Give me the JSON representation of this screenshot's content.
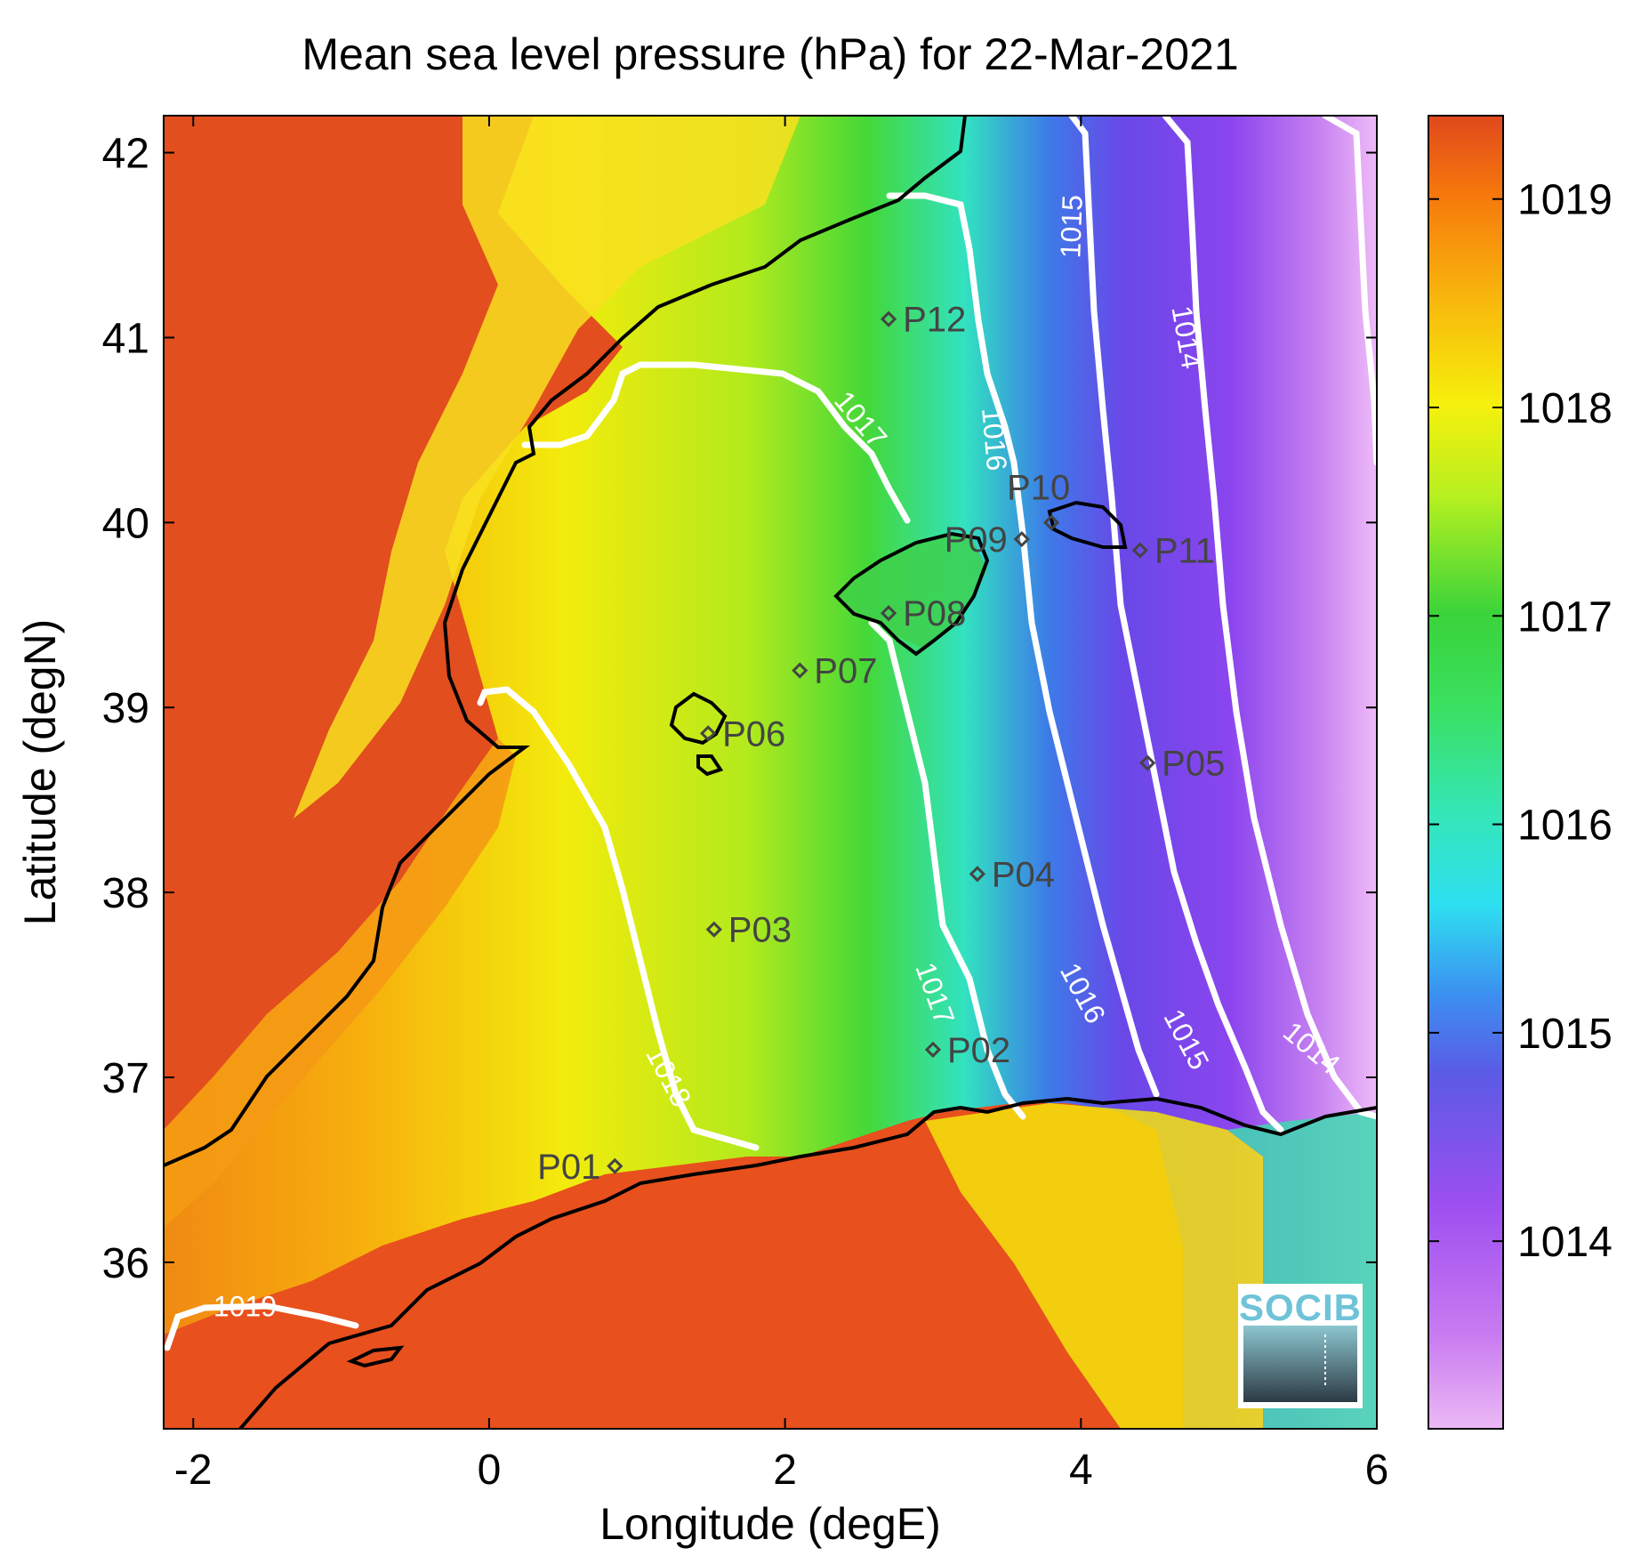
{
  "title": "Mean sea level pressure (hPa) for 22-Mar-2021",
  "x_axis": {
    "label": "Longitude (degE)",
    "range": [
      -2.2,
      6
    ],
    "ticks": [
      {
        "value": -2,
        "label": "-2"
      },
      {
        "value": 0,
        "label": "0"
      },
      {
        "value": 2,
        "label": "2"
      },
      {
        "value": 4,
        "label": "4"
      },
      {
        "value": 6,
        "label": "6"
      }
    ]
  },
  "y_axis": {
    "label": "Latitude (degN)",
    "range": [
      35.1,
      42.2
    ],
    "ticks": [
      {
        "value": 36,
        "label": "36"
      },
      {
        "value": 37,
        "label": "37"
      },
      {
        "value": 38,
        "label": "38"
      },
      {
        "value": 39,
        "label": "39"
      },
      {
        "value": 40,
        "label": "40"
      },
      {
        "value": 41,
        "label": "41"
      },
      {
        "value": 42,
        "label": "42"
      }
    ]
  },
  "colorbar": {
    "range": [
      1013.1,
      1019.4
    ],
    "ticks": [
      {
        "value": 1014,
        "label": "1014"
      },
      {
        "value": 1015,
        "label": "1015"
      },
      {
        "value": 1016,
        "label": "1016"
      },
      {
        "value": 1017,
        "label": "1017"
      },
      {
        "value": 1018,
        "label": "1018"
      },
      {
        "value": 1019,
        "label": "1019"
      }
    ]
  },
  "stations": [
    {
      "id": "P01",
      "label": "P01",
      "lon": 0.85,
      "lat": 36.52,
      "label_side": "left"
    },
    {
      "id": "P02",
      "label": "P02",
      "lon": 3.0,
      "lat": 37.15,
      "label_side": "right"
    },
    {
      "id": "P03",
      "label": "P03",
      "lon": 1.52,
      "lat": 37.8,
      "label_side": "right"
    },
    {
      "id": "P04",
      "label": "P04",
      "lon": 3.3,
      "lat": 38.1,
      "label_side": "right"
    },
    {
      "id": "P05",
      "label": "P05",
      "lon": 4.45,
      "lat": 38.7,
      "label_side": "right"
    },
    {
      "id": "P06",
      "label": "P06",
      "lon": 1.48,
      "lat": 38.86,
      "label_side": "right"
    },
    {
      "id": "P07",
      "label": "P07",
      "lon": 2.1,
      "lat": 39.2,
      "label_side": "right"
    },
    {
      "id": "P08",
      "label": "P08",
      "lon": 2.7,
      "lat": 39.51,
      "label_side": "right"
    },
    {
      "id": "P09",
      "label": "P09",
      "lon": 3.6,
      "lat": 39.91,
      "label_side": "left"
    },
    {
      "id": "P10",
      "label": "P10",
      "lon": 3.8,
      "lat": 40.0,
      "label_side": "above"
    },
    {
      "id": "P11",
      "label": "P11",
      "lon": 4.4,
      "lat": 39.85,
      "label_side": "right"
    },
    {
      "id": "P12",
      "label": "P12",
      "lon": 2.7,
      "lat": 41.1,
      "label_side": "right"
    }
  ],
  "contour_labels": [
    {
      "text": "1014",
      "lon": 4.7,
      "lat": 41.0,
      "angle": 80
    },
    {
      "text": "1014",
      "lon": 5.55,
      "lat": 37.15,
      "angle": 40
    },
    {
      "text": "1015",
      "lon": 3.95,
      "lat": 41.6,
      "angle": -88
    },
    {
      "text": "1015",
      "lon": 4.7,
      "lat": 37.2,
      "angle": 62
    },
    {
      "text": "1016",
      "lon": 3.4,
      "lat": 40.45,
      "angle": 85
    },
    {
      "text": "1016",
      "lon": 4.0,
      "lat": 37.45,
      "angle": 62
    },
    {
      "text": "1017",
      "lon": 2.5,
      "lat": 40.55,
      "angle": 50
    },
    {
      "text": "1017",
      "lon": 3.0,
      "lat": 37.45,
      "angle": 70
    },
    {
      "text": "1018",
      "lon": 1.2,
      "lat": 37.0,
      "angle": 62
    },
    {
      "text": "1019",
      "lon": -1.65,
      "lat": 35.75,
      "angle": 0
    }
  ],
  "logo": {
    "text": "SOCIB"
  },
  "colors": {
    "contour": "#ffffff",
    "coast": "#000000",
    "station": "#444444"
  }
}
